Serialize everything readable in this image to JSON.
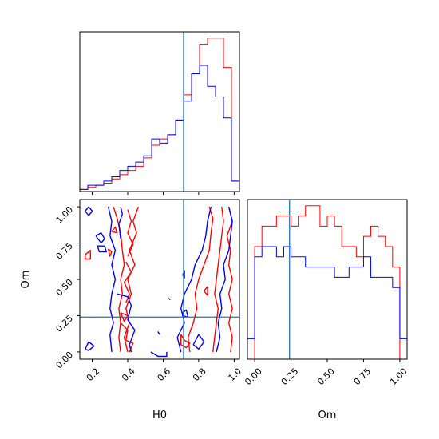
{
  "colors": {
    "red": "#ff0000",
    "blue": "#0000ff",
    "truth": "#1f77b4",
    "frame": "#000000"
  },
  "chart_data": {
    "type": "corner",
    "parameters": [
      "H0",
      "Om"
    ],
    "truths": {
      "H0": 0.715,
      "Om": 0.24
    },
    "axes": {
      "H0": {
        "label": "H0",
        "range": [
          0.13,
          1.03
        ],
        "ticks": [
          0.2,
          0.4,
          0.6,
          0.8,
          1.0
        ],
        "tick_labels": [
          "0.2",
          "0.4",
          "0.6",
          "0.8",
          "1.0"
        ]
      },
      "Om": {
        "label": "Om",
        "range": [
          -0.05,
          1.05
        ],
        "ticks": [
          0.0,
          0.25,
          0.5,
          0.75,
          1.0
        ],
        "tick_labels": [
          "0.00",
          "0.25",
          "0.50",
          "0.75",
          "1.00"
        ]
      }
    },
    "hist_H0": {
      "bin_edges": [
        0.13,
        0.175,
        0.22,
        0.265,
        0.31,
        0.355,
        0.4,
        0.445,
        0.49,
        0.535,
        0.58,
        0.625,
        0.67,
        0.715,
        0.76,
        0.805,
        0.85,
        0.895,
        0.94,
        0.985,
        1.03
      ],
      "series": [
        {
          "color": "red",
          "values": [
            1,
            2,
            3,
            4,
            6,
            8,
            10,
            12,
            16,
            22,
            25,
            27,
            34,
            46,
            56,
            70,
            73,
            73,
            59,
            5
          ]
        },
        {
          "color": "blue",
          "values": [
            1,
            3,
            3,
            5,
            7,
            10,
            12,
            14,
            17,
            25,
            23,
            27,
            34,
            43,
            56,
            60,
            50,
            45,
            35,
            5
          ]
        }
      ]
    },
    "hist_Om": {
      "bin_edges": [
        -0.05,
        0.0,
        0.05,
        0.1,
        0.15,
        0.2,
        0.25,
        0.3,
        0.35,
        0.4,
        0.45,
        0.5,
        0.55,
        0.6,
        0.65,
        0.7,
        0.75,
        0.8,
        0.85,
        0.9,
        0.95,
        1.0,
        1.05
      ],
      "series": [
        {
          "color": "red",
          "values": [
            0,
            11,
            13,
            13,
            14,
            14,
            13,
            14,
            15,
            15,
            13,
            14,
            13,
            11,
            11,
            10,
            12,
            13,
            12,
            11,
            9,
            0
          ]
        },
        {
          "color": "blue",
          "values": [
            2,
            10,
            11,
            11,
            10,
            11,
            10,
            10,
            9,
            9,
            9,
            9,
            8,
            8,
            9,
            9,
            10,
            8,
            8,
            8,
            7,
            2
          ]
        }
      ]
    },
    "contours_H0_Om": [
      {
        "color": "red",
        "points": [
          [
            0.32,
            1.0
          ],
          [
            0.34,
            0.92
          ],
          [
            0.36,
            0.82
          ],
          [
            0.37,
            0.7
          ],
          [
            0.38,
            0.6
          ],
          [
            0.36,
            0.5
          ],
          [
            0.37,
            0.4
          ],
          [
            0.35,
            0.3
          ],
          [
            0.36,
            0.2
          ],
          [
            0.35,
            0.1
          ],
          [
            0.36,
            0.0
          ]
        ]
      },
      {
        "color": "red",
        "points": [
          [
            0.46,
            1.0
          ],
          [
            0.43,
            0.9
          ],
          [
            0.45,
            0.82
          ],
          [
            0.41,
            0.7
          ],
          [
            0.44,
            0.6
          ],
          [
            0.4,
            0.5
          ],
          [
            0.42,
            0.4
          ],
          [
            0.39,
            0.3
          ],
          [
            0.41,
            0.2
          ],
          [
            0.38,
            0.1
          ],
          [
            0.4,
            0.0
          ]
        ]
      },
      {
        "color": "red",
        "points": [
          [
            0.4,
            0.98
          ],
          [
            0.42,
            0.9
          ],
          [
            0.4,
            0.82
          ],
          [
            0.43,
            0.74
          ],
          [
            0.4,
            0.66
          ]
        ]
      },
      {
        "color": "red",
        "points": [
          [
            0.39,
            0.62
          ],
          [
            0.42,
            0.55
          ],
          [
            0.38,
            0.48
          ],
          [
            0.41,
            0.4
          ],
          [
            0.39,
            0.34
          ]
        ]
      },
      {
        "color": "red",
        "points": [
          [
            0.36,
            0.2
          ],
          [
            0.4,
            0.15
          ],
          [
            0.39,
            0.08
          ],
          [
            0.43,
            0.06
          ],
          [
            0.41,
            0.0
          ]
        ]
      },
      {
        "color": "red",
        "points": [
          [
            0.16,
            0.67
          ],
          [
            0.19,
            0.7
          ],
          [
            0.19,
            0.64
          ],
          [
            0.16,
            0.64
          ],
          [
            0.16,
            0.67
          ]
        ]
      },
      {
        "color": "red",
        "points": [
          [
            0.29,
            0.71
          ],
          [
            0.31,
            0.69
          ],
          [
            0.3,
            0.66
          ],
          [
            0.29,
            0.71
          ]
        ]
      },
      {
        "color": "red",
        "points": [
          [
            0.31,
            0.83
          ],
          [
            0.33,
            0.86
          ],
          [
            0.34,
            0.82
          ],
          [
            0.31,
            0.83
          ]
        ]
      },
      {
        "color": "red",
        "points": [
          [
            0.36,
            0.27
          ],
          [
            0.4,
            0.25
          ],
          [
            0.38,
            0.21
          ],
          [
            0.36,
            0.27
          ]
        ]
      },
      {
        "color": "red",
        "points": [
          [
            0.86,
            1.0
          ],
          [
            0.88,
            0.92
          ],
          [
            0.87,
            0.82
          ],
          [
            0.86,
            0.7
          ],
          [
            0.83,
            0.6
          ],
          [
            0.8,
            0.5
          ],
          [
            0.78,
            0.4
          ],
          [
            0.79,
            0.3
          ],
          [
            0.77,
            0.2
          ],
          [
            0.74,
            0.1
          ],
          [
            0.75,
            0.0
          ]
        ]
      },
      {
        "color": "red",
        "points": [
          [
            0.93,
            1.0
          ],
          [
            0.94,
            0.9
          ],
          [
            0.93,
            0.8
          ],
          [
            0.92,
            0.7
          ],
          [
            0.91,
            0.6
          ],
          [
            0.9,
            0.5
          ],
          [
            0.89,
            0.4
          ],
          [
            0.91,
            0.3
          ],
          [
            0.9,
            0.2
          ],
          [
            0.89,
            0.1
          ],
          [
            0.88,
            0.0
          ]
        ]
      },
      {
        "color": "red",
        "points": [
          [
            0.97,
            1.0
          ],
          [
            0.99,
            0.9
          ],
          [
            0.96,
            0.8
          ],
          [
            0.98,
            0.7
          ],
          [
            0.97,
            0.6
          ],
          [
            0.99,
            0.5
          ],
          [
            0.97,
            0.4
          ],
          [
            0.99,
            0.3
          ],
          [
            0.97,
            0.2
          ],
          [
            0.99,
            0.1
          ],
          [
            0.98,
            0.0
          ]
        ]
      },
      {
        "color": "red",
        "points": [
          [
            0.7,
            0.12
          ],
          [
            0.72,
            0.08
          ],
          [
            0.75,
            0.06
          ],
          [
            0.73,
            0.03
          ],
          [
            0.7,
            0.05
          ],
          [
            0.7,
            0.12
          ]
        ]
      },
      {
        "color": "red",
        "points": [
          [
            0.83,
            0.42
          ],
          [
            0.85,
            0.45
          ],
          [
            0.85,
            0.39
          ],
          [
            0.83,
            0.42
          ]
        ]
      },
      {
        "color": "blue",
        "points": [
          [
            0.29,
            1.0
          ],
          [
            0.31,
            0.9
          ],
          [
            0.3,
            0.8
          ],
          [
            0.33,
            0.7
          ],
          [
            0.31,
            0.6
          ],
          [
            0.33,
            0.5
          ],
          [
            0.31,
            0.4
          ],
          [
            0.3,
            0.3
          ],
          [
            0.32,
            0.2
          ],
          [
            0.3,
            0.12
          ],
          [
            0.31,
            0.0
          ]
        ]
      },
      {
        "color": "blue",
        "points": [
          [
            0.36,
            1.0
          ],
          [
            0.37,
            0.95
          ],
          [
            0.35,
            0.88
          ],
          [
            0.36,
            0.78
          ]
        ]
      },
      {
        "color": "blue",
        "points": [
          [
            0.34,
            0.4
          ],
          [
            0.4,
            0.38
          ],
          [
            0.42,
            0.32
          ],
          [
            0.4,
            0.22
          ],
          [
            0.44,
            0.15
          ],
          [
            0.41,
            0.05
          ],
          [
            0.42,
            0.0
          ]
        ]
      },
      {
        "color": "blue",
        "points": [
          [
            0.18,
            1.0
          ],
          [
            0.2,
            0.97
          ],
          [
            0.18,
            0.94
          ],
          [
            0.16,
            0.97
          ],
          [
            0.18,
            1.0
          ]
        ]
      },
      {
        "color": "blue",
        "points": [
          [
            0.22,
            0.8
          ],
          [
            0.25,
            0.82
          ],
          [
            0.27,
            0.78
          ],
          [
            0.25,
            0.75
          ],
          [
            0.22,
            0.8
          ]
        ]
      },
      {
        "color": "blue",
        "points": [
          [
            0.23,
            0.73
          ],
          [
            0.27,
            0.73
          ],
          [
            0.28,
            0.69
          ],
          [
            0.24,
            0.69
          ],
          [
            0.23,
            0.73
          ]
        ]
      },
      {
        "color": "blue",
        "points": [
          [
            0.16,
            0.02
          ],
          [
            0.18,
            0.07
          ],
          [
            0.21,
            0.04
          ],
          [
            0.18,
            0.01
          ],
          [
            0.16,
            0.02
          ]
        ]
      },
      {
        "color": "blue",
        "points": [
          [
            0.53,
            0.0
          ],
          [
            0.57,
            -0.03
          ],
          [
            0.62,
            -0.03
          ],
          [
            0.62,
            0.0
          ]
        ]
      },
      {
        "color": "blue",
        "points": [
          [
            0.87,
            1.0
          ],
          [
            0.85,
            0.9
          ],
          [
            0.84,
            0.8
          ],
          [
            0.82,
            0.7
          ],
          [
            0.78,
            0.6
          ],
          [
            0.76,
            0.5
          ],
          [
            0.72,
            0.4
          ],
          [
            0.7,
            0.3
          ],
          [
            0.72,
            0.2
          ],
          [
            0.68,
            0.1
          ],
          [
            0.7,
            0.0
          ]
        ]
      },
      {
        "color": "blue",
        "points": [
          [
            0.97,
            1.0
          ],
          [
            0.99,
            0.9
          ],
          [
            0.98,
            0.8
          ],
          [
            0.97,
            0.7
          ],
          [
            0.94,
            0.6
          ],
          [
            0.95,
            0.5
          ],
          [
            0.92,
            0.4
          ],
          [
            0.93,
            0.3
          ],
          [
            0.91,
            0.2
          ],
          [
            0.92,
            0.1
          ],
          [
            0.9,
            0.0
          ]
        ]
      },
      {
        "color": "blue",
        "points": [
          [
            0.77,
            0.05
          ],
          [
            0.8,
            0.12
          ],
          [
            0.83,
            0.07
          ],
          [
            0.8,
            0.02
          ],
          [
            0.77,
            0.05
          ]
        ]
      },
      {
        "color": "blue",
        "points": [
          [
            0.71,
            0.27
          ],
          [
            0.73,
            0.29
          ],
          [
            0.74,
            0.24
          ],
          [
            0.71,
            0.25
          ],
          [
            0.71,
            0.27
          ]
        ]
      },
      {
        "color": "blue",
        "points": [
          [
            0.71,
            0.53
          ],
          [
            0.72,
            0.56
          ],
          [
            0.72,
            0.51
          ],
          [
            0.71,
            0.53
          ]
        ]
      },
      {
        "color": "blue",
        "points": [
          [
            0.63,
            0.37
          ],
          [
            0.64,
            0.36
          ]
        ]
      },
      {
        "color": "blue",
        "points": [
          [
            0.57,
            0.14
          ],
          [
            0.58,
            0.12
          ]
        ]
      }
    ]
  }
}
